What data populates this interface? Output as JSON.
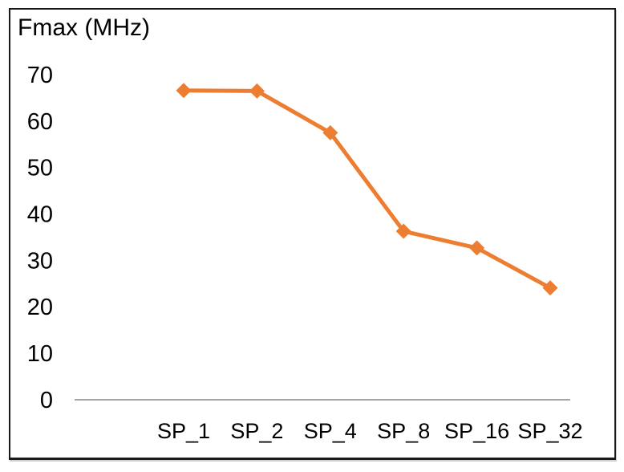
{
  "chart_data": {
    "type": "line",
    "title": "Fmax (MHz)",
    "categories": [
      "SP_1",
      "SP_2",
      "SP_4",
      "SP_8",
      "SP_16",
      "SP_32"
    ],
    "values": [
      66.5,
      66.4,
      57.4,
      36.2,
      32.6,
      24
    ],
    "ylim": [
      0,
      70
    ],
    "yticks": [
      0,
      10,
      20,
      30,
      40,
      50,
      60,
      70
    ],
    "xlabel": "",
    "ylabel": "",
    "legend": "none",
    "grid": false,
    "marker": "diamond",
    "line_color": "#ED7D31",
    "axis_color": "#A6A6A6",
    "text_color": "#000000",
    "frame_color": "#1a1a1a"
  }
}
